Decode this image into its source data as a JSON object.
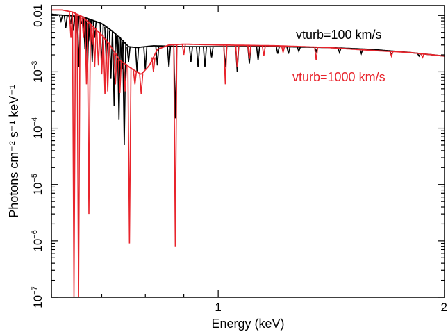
{
  "chart_data": {
    "type": "line",
    "xlabel": "Energy (keV)",
    "ylabel": "Photons cm⁻² s⁻¹ keV⁻¹",
    "x_scale": "log",
    "y_scale": "log",
    "xlim": [
      0.6,
      2.0
    ],
    "ylim": [
      1e-07,
      0.015
    ],
    "x_ticks": [
      {
        "value": 1,
        "label": "1"
      },
      {
        "value": 2,
        "label": "2"
      }
    ],
    "y_ticks": [
      {
        "value": 0.01,
        "base": "0.01",
        "exp": ""
      },
      {
        "value": 0.001,
        "base": "10",
        "exp": "−3"
      },
      {
        "value": 0.0001,
        "base": "10",
        "exp": "−4"
      },
      {
        "value": 1e-05,
        "base": "10",
        "exp": "−5"
      },
      {
        "value": 1e-06,
        "base": "10",
        "exp": "−6"
      },
      {
        "value": 1e-07,
        "base": "10",
        "exp": "−7"
      }
    ],
    "grid": false,
    "legend": "none",
    "annotations": [
      {
        "text": "vturb=100 km/s",
        "color": "#000000",
        "series": "vturb=100 km/s"
      },
      {
        "text": "vturb=1000 km/s",
        "color": "#e8242c",
        "series": "vturb=1000 km/s"
      }
    ],
    "series": [
      {
        "name": "vturb=100 km/s",
        "color": "#000000",
        "continuum": [
          [
            0.6,
            0.0105
          ],
          [
            0.66,
            0.0095
          ],
          [
            0.7,
            0.0072
          ],
          [
            0.72,
            0.0055
          ],
          [
            0.74,
            0.004
          ],
          [
            0.76,
            0.0028
          ],
          [
            0.78,
            0.0027
          ],
          [
            0.82,
            0.0029
          ],
          [
            0.9,
            0.0028
          ],
          [
            1.0,
            0.0028
          ],
          [
            1.2,
            0.0028
          ],
          [
            1.4,
            0.0027
          ],
          [
            1.6,
            0.0025
          ],
          [
            1.8,
            0.0022
          ],
          [
            2.0,
            0.0019
          ]
        ],
        "lines": [
          [
            0.618,
            0.008
          ],
          [
            0.627,
            0.006
          ],
          [
            0.636,
            0.007
          ],
          [
            0.642,
            0.0055
          ],
          [
            0.65,
            0.004
          ],
          [
            0.653,
            0.0012
          ],
          [
            0.658,
            0.007
          ],
          [
            0.665,
            0.0025
          ],
          [
            0.67,
            0.001
          ],
          [
            0.675,
            0.0035
          ],
          [
            0.68,
            0.0015
          ],
          [
            0.685,
            0.004
          ],
          [
            0.7,
            0.0011
          ],
          [
            0.71,
            0.0014
          ],
          [
            0.72,
            0.00075
          ],
          [
            0.727,
            0.00025
          ],
          [
            0.735,
            0.0015
          ],
          [
            0.738,
            0.00014
          ],
          [
            0.745,
            0.0011
          ],
          [
            0.75,
            5e-05
          ],
          [
            0.76,
            0.0015
          ],
          [
            0.78,
            0.001
          ],
          [
            0.8,
            0.0011
          ],
          [
            0.83,
            0.0013
          ],
          [
            0.86,
            0.0012
          ],
          [
            0.877,
            0.00015
          ],
          [
            0.92,
            0.0015
          ],
          [
            0.94,
            0.0012
          ],
          [
            0.96,
            0.0012
          ],
          [
            0.98,
            0.0018
          ],
          [
            1.022,
            0.0012
          ],
          [
            1.06,
            0.001
          ],
          [
            1.1,
            0.0014
          ],
          [
            1.13,
            0.0016
          ],
          [
            1.2,
            0.0021
          ],
          [
            1.24,
            0.0021
          ],
          [
            1.28,
            0.0023
          ],
          [
            1.35,
            0.0023
          ],
          [
            1.45,
            0.0022
          ],
          [
            1.55,
            0.0021
          ],
          [
            1.7,
            0.002
          ],
          [
            1.85,
            0.0019
          ]
        ]
      },
      {
        "name": "vturb=1000 km/s",
        "color": "#e8242c",
        "continuum": [
          [
            0.6,
            0.0125
          ],
          [
            0.62,
            0.0125
          ],
          [
            0.64,
            0.0115
          ],
          [
            0.66,
            0.0095
          ],
          [
            0.68,
            0.0065
          ],
          [
            0.7,
            0.0045
          ],
          [
            0.72,
            0.0028
          ],
          [
            0.74,
            0.0016
          ],
          [
            0.77,
            0.0011
          ],
          [
            0.79,
            0.0009
          ],
          [
            0.81,
            0.0013
          ],
          [
            0.83,
            0.0025
          ],
          [
            0.86,
            0.003
          ],
          [
            0.9,
            0.0031
          ],
          [
            1.0,
            0.003
          ],
          [
            1.2,
            0.0029
          ],
          [
            1.4,
            0.0027
          ],
          [
            1.6,
            0.0024
          ],
          [
            1.8,
            0.0022
          ],
          [
            2.0,
            0.0019
          ]
        ],
        "lines": [
          [
            0.637,
            0.004
          ],
          [
            0.643,
            1e-08
          ],
          [
            0.652,
            1e-08
          ],
          [
            0.662,
            0.004
          ],
          [
            0.668,
            0.0006
          ],
          [
            0.673,
            3e-06
          ],
          [
            0.68,
            0.003
          ],
          [
            0.685,
            0.0012
          ],
          [
            0.693,
            0.0013
          ],
          [
            0.7,
            0.0009
          ],
          [
            0.707,
            0.0004
          ],
          [
            0.713,
            0.00045
          ],
          [
            0.73,
            0.0006
          ],
          [
            0.74,
            0.00042
          ],
          [
            0.752,
            0.00045
          ],
          [
            0.762,
            9e-07
          ],
          [
            0.775,
            0.0006
          ],
          [
            0.79,
            0.0004
          ],
          [
            0.82,
            0.001
          ],
          [
            0.877,
            8e-07
          ],
          [
            0.9,
            0.002
          ],
          [
            1.022,
            0.0006
          ],
          [
            1.06,
            0.0012
          ],
          [
            1.1,
            0.0017
          ],
          [
            1.15,
            0.0019
          ],
          [
            1.22,
            0.0022
          ],
          [
            1.35,
            0.0016
          ],
          [
            1.7,
            0.0019
          ],
          [
            1.87,
            0.0018
          ]
        ]
      }
    ]
  }
}
